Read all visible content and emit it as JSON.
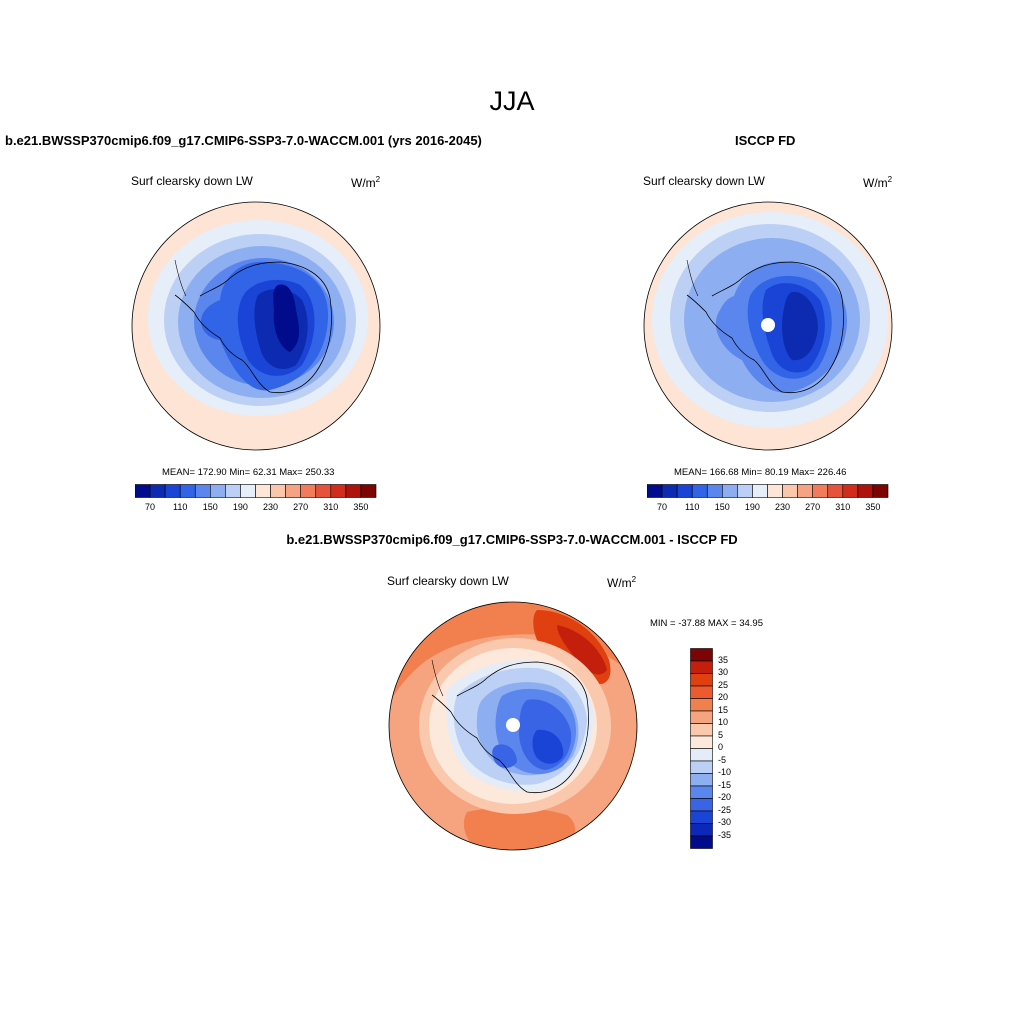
{
  "figure": {
    "title": "JJA"
  },
  "panels": {
    "model": {
      "title": "b.e21.BWSSP370cmip6.f09_g17.CMIP6-SSP3-7.0-WACCM.001 (yrs 2016-2045)",
      "variable": "Surf clearsky down LW",
      "units_base": "W/m",
      "units_exp": "2",
      "stats": "MEAN= 172.90  Min=  62.31  Max= 250.33"
    },
    "obs": {
      "title": "ISCCP FD",
      "variable": "Surf clearsky down LW",
      "units_base": "W/m",
      "units_exp": "2",
      "stats": "MEAN= 166.68  Min=  80.19  Max= 226.46"
    },
    "diff": {
      "title": "b.e21.BWSSP370cmip6.f09_g17.CMIP6-SSP3-7.0-WACCM.001 - ISCCP FD",
      "variable": "Surf clearsky down LW",
      "units_base": "W/m",
      "units_exp": "2",
      "stats": "MIN = -37.88 MAX =  34.95"
    }
  },
  "colorbars": {
    "abs": {
      "labels": [
        "70",
        "110",
        "150",
        "190",
        "230",
        "270",
        "310",
        "350"
      ],
      "colors": [
        "#000c8c",
        "#0c2bb0",
        "#1a44d6",
        "#3264e8",
        "#5a86ee",
        "#8eaef2",
        "#bcd0f5",
        "#e6eefa",
        "#fde6d6",
        "#fac7ac",
        "#f6a384",
        "#f07c5c",
        "#e6533a",
        "#d12c1c",
        "#ad130c",
        "#7c0404"
      ]
    },
    "diff": {
      "labels": [
        "35",
        "30",
        "25",
        "20",
        "15",
        "10",
        "5",
        "0",
        "-5",
        "-10",
        "-15",
        "-20",
        "-25",
        "-30",
        "-35"
      ],
      "colors": [
        "#7c0404",
        "#c41f0c",
        "#e0400f",
        "#ee5a2f",
        "#f2804f",
        "#f6a47f",
        "#fac9ad",
        "#fde8dc",
        "#e4ecf8",
        "#bcd0f5",
        "#8eaef2",
        "#5a86ee",
        "#3a64e6",
        "#1a44d6",
        "#0c28b8",
        "#000c8c"
      ]
    }
  },
  "map_colors": {
    "ocean_warm": "#fde0cf",
    "land_cold": "#000e9a",
    "coastline": "#000000"
  }
}
